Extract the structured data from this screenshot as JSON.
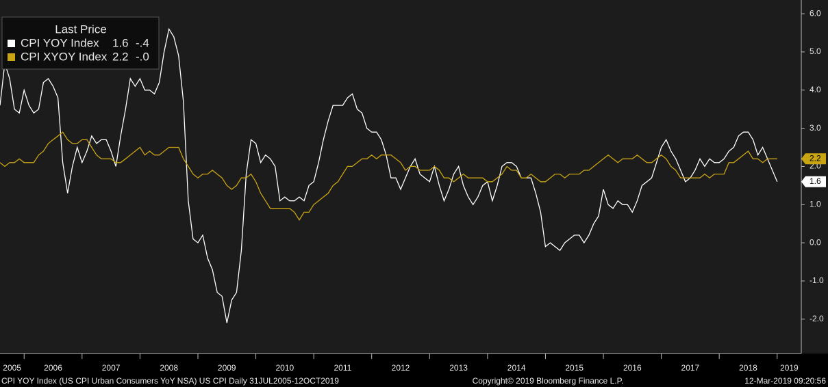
{
  "chart_data": {
    "type": "line",
    "legend_title": "Last Price",
    "footer_left": "CPI YOY Index (US CPI Urban Consumers YoY NSA) US CPI  Daily 31JUL2005-12OCT2019",
    "footer_center": "Copyright© 2019 Bloomberg Finance L.P.",
    "footer_right": "12-Mar-2019 09:20:56",
    "x": [
      "2005-08",
      "2005-09",
      "2005-10",
      "2005-11",
      "2005-12",
      "2006-01",
      "2006-02",
      "2006-03",
      "2006-04",
      "2006-05",
      "2006-06",
      "2006-07",
      "2006-08",
      "2006-09",
      "2006-10",
      "2006-11",
      "2006-12",
      "2007-01",
      "2007-02",
      "2007-03",
      "2007-04",
      "2007-05",
      "2007-06",
      "2007-07",
      "2007-08",
      "2007-09",
      "2007-10",
      "2007-11",
      "2007-12",
      "2008-01",
      "2008-02",
      "2008-03",
      "2008-04",
      "2008-05",
      "2008-06",
      "2008-07",
      "2008-08",
      "2008-09",
      "2008-10",
      "2008-11",
      "2008-12",
      "2009-01",
      "2009-02",
      "2009-03",
      "2009-04",
      "2009-05",
      "2009-06",
      "2009-07",
      "2009-08",
      "2009-09",
      "2009-10",
      "2009-11",
      "2009-12",
      "2010-01",
      "2010-02",
      "2010-03",
      "2010-04",
      "2010-05",
      "2010-06",
      "2010-07",
      "2010-08",
      "2010-09",
      "2010-10",
      "2010-11",
      "2010-12",
      "2011-01",
      "2011-02",
      "2011-03",
      "2011-04",
      "2011-05",
      "2011-06",
      "2011-07",
      "2011-08",
      "2011-09",
      "2011-10",
      "2011-11",
      "2011-12",
      "2012-01",
      "2012-02",
      "2012-03",
      "2012-04",
      "2012-05",
      "2012-06",
      "2012-07",
      "2012-08",
      "2012-09",
      "2012-10",
      "2012-11",
      "2012-12",
      "2013-01",
      "2013-02",
      "2013-03",
      "2013-04",
      "2013-05",
      "2013-06",
      "2013-07",
      "2013-08",
      "2013-09",
      "2013-10",
      "2013-11",
      "2013-12",
      "2014-01",
      "2014-02",
      "2014-03",
      "2014-04",
      "2014-05",
      "2014-06",
      "2014-07",
      "2014-08",
      "2014-09",
      "2014-10",
      "2014-11",
      "2014-12",
      "2015-01",
      "2015-02",
      "2015-03",
      "2015-04",
      "2015-05",
      "2015-06",
      "2015-07",
      "2015-08",
      "2015-09",
      "2015-10",
      "2015-11",
      "2015-12",
      "2016-01",
      "2016-02",
      "2016-03",
      "2016-04",
      "2016-05",
      "2016-06",
      "2016-07",
      "2016-08",
      "2016-09",
      "2016-10",
      "2016-11",
      "2016-12",
      "2017-01",
      "2017-02",
      "2017-03",
      "2017-04",
      "2017-05",
      "2017-06",
      "2017-07",
      "2017-08",
      "2017-09",
      "2017-10",
      "2017-11",
      "2017-12",
      "2018-01",
      "2018-02",
      "2018-03",
      "2018-04",
      "2018-05",
      "2018-06",
      "2018-07",
      "2018-08",
      "2018-09",
      "2018-10",
      "2018-11",
      "2018-12",
      "2019-01"
    ],
    "series": [
      {
        "name": "CPI YOY Index",
        "legend_last": "1.6",
        "legend_change": "-.4",
        "color": "#ffffff",
        "values": [
          3.6,
          4.7,
          4.3,
          3.5,
          3.4,
          4.0,
          3.6,
          3.4,
          3.5,
          4.2,
          4.3,
          4.1,
          3.8,
          2.1,
          1.3,
          2.0,
          2.5,
          2.1,
          2.4,
          2.8,
          2.6,
          2.7,
          2.7,
          2.4,
          2.0,
          2.8,
          3.5,
          4.3,
          4.1,
          4.3,
          4.0,
          4.0,
          3.9,
          4.2,
          5.0,
          5.6,
          5.4,
          4.9,
          3.7,
          1.1,
          0.1,
          0.0,
          0.2,
          -0.4,
          -0.7,
          -1.3,
          -1.4,
          -2.1,
          -1.5,
          -1.3,
          -0.2,
          1.8,
          2.7,
          2.6,
          2.1,
          2.3,
          2.2,
          2.0,
          1.1,
          1.2,
          1.1,
          1.1,
          1.2,
          1.1,
          1.5,
          1.6,
          2.1,
          2.7,
          3.2,
          3.6,
          3.6,
          3.6,
          3.8,
          3.9,
          3.5,
          3.4,
          3.0,
          2.9,
          2.9,
          2.7,
          2.3,
          1.7,
          1.7,
          1.4,
          1.7,
          2.0,
          2.2,
          1.8,
          1.7,
          1.6,
          2.0,
          1.5,
          1.1,
          1.4,
          1.8,
          2.0,
          1.5,
          1.2,
          1.0,
          1.2,
          1.5,
          1.6,
          1.1,
          1.5,
          2.0,
          2.1,
          2.1,
          2.0,
          1.7,
          1.7,
          1.7,
          1.3,
          0.8,
          -0.1,
          0.0,
          -0.1,
          -0.2,
          0.0,
          0.1,
          0.2,
          0.2,
          0.0,
          0.2,
          0.5,
          0.7,
          1.4,
          1.0,
          0.9,
          1.1,
          1.0,
          1.0,
          0.8,
          1.1,
          1.5,
          1.6,
          1.7,
          2.1,
          2.5,
          2.7,
          2.4,
          2.2,
          1.9,
          1.6,
          1.7,
          1.9,
          2.2,
          2.0,
          2.2,
          2.1,
          2.1,
          2.2,
          2.4,
          2.5,
          2.8,
          2.9,
          2.9,
          2.7,
          2.3,
          2.5,
          2.2,
          1.9,
          1.6
        ]
      },
      {
        "name": "CPI XYOY Index",
        "legend_last": "2.2",
        "legend_change": "-.0",
        "color": "#c9a514",
        "values": [
          2.1,
          2.0,
          2.1,
          2.1,
          2.2,
          2.1,
          2.1,
          2.1,
          2.3,
          2.4,
          2.6,
          2.7,
          2.8,
          2.9,
          2.7,
          2.6,
          2.6,
          2.7,
          2.7,
          2.5,
          2.3,
          2.2,
          2.2,
          2.2,
          2.1,
          2.1,
          2.2,
          2.3,
          2.4,
          2.5,
          2.3,
          2.4,
          2.3,
          2.3,
          2.4,
          2.5,
          2.5,
          2.5,
          2.2,
          2.0,
          1.8,
          1.7,
          1.8,
          1.8,
          1.9,
          1.8,
          1.7,
          1.5,
          1.4,
          1.5,
          1.7,
          1.7,
          1.8,
          1.6,
          1.3,
          1.1,
          0.9,
          0.9,
          0.9,
          0.9,
          0.9,
          0.8,
          0.6,
          0.8,
          0.8,
          1.0,
          1.1,
          1.2,
          1.3,
          1.5,
          1.6,
          1.8,
          2.0,
          2.0,
          2.1,
          2.2,
          2.2,
          2.3,
          2.2,
          2.3,
          2.3,
          2.3,
          2.2,
          2.1,
          1.9,
          2.0,
          2.0,
          1.9,
          1.9,
          1.9,
          2.0,
          1.9,
          1.7,
          1.7,
          1.6,
          1.7,
          1.8,
          1.7,
          1.7,
          1.7,
          1.7,
          1.6,
          1.6,
          1.7,
          1.8,
          2.0,
          1.9,
          1.9,
          1.7,
          1.7,
          1.8,
          1.7,
          1.6,
          1.6,
          1.7,
          1.8,
          1.8,
          1.7,
          1.8,
          1.8,
          1.8,
          1.9,
          1.9,
          2.0,
          2.1,
          2.2,
          2.3,
          2.2,
          2.1,
          2.2,
          2.2,
          2.2,
          2.3,
          2.2,
          2.1,
          2.1,
          2.2,
          2.3,
          2.2,
          2.0,
          1.9,
          1.7,
          1.7,
          1.7,
          1.7,
          1.7,
          1.8,
          1.7,
          1.8,
          1.8,
          1.8,
          2.1,
          2.1,
          2.2,
          2.3,
          2.4,
          2.2,
          2.2,
          2.1,
          2.2,
          2.2,
          2.2
        ]
      }
    ],
    "xlim": [
      "2005-08",
      "2019-06"
    ],
    "xticks": [
      2005,
      2006,
      2007,
      2008,
      2009,
      2010,
      2011,
      2012,
      2013,
      2014,
      2015,
      2016,
      2017,
      2018,
      2019
    ],
    "ylim": [
      -2.9,
      6.36
    ],
    "yticks": [
      {
        "value": 6,
        "label": "6.0"
      },
      {
        "value": 5,
        "label": "5.0"
      },
      {
        "value": 4,
        "label": "4.0"
      },
      {
        "value": 3,
        "label": "3.0"
      },
      {
        "value": 2,
        "label": "2.0"
      },
      {
        "value": 1,
        "label": "1.0"
      },
      {
        "value": 0,
        "label": "0.0"
      },
      {
        "value": -1,
        "label": "-1.0"
      },
      {
        "value": -2,
        "label": "-2.0"
      }
    ],
    "grid": false
  }
}
